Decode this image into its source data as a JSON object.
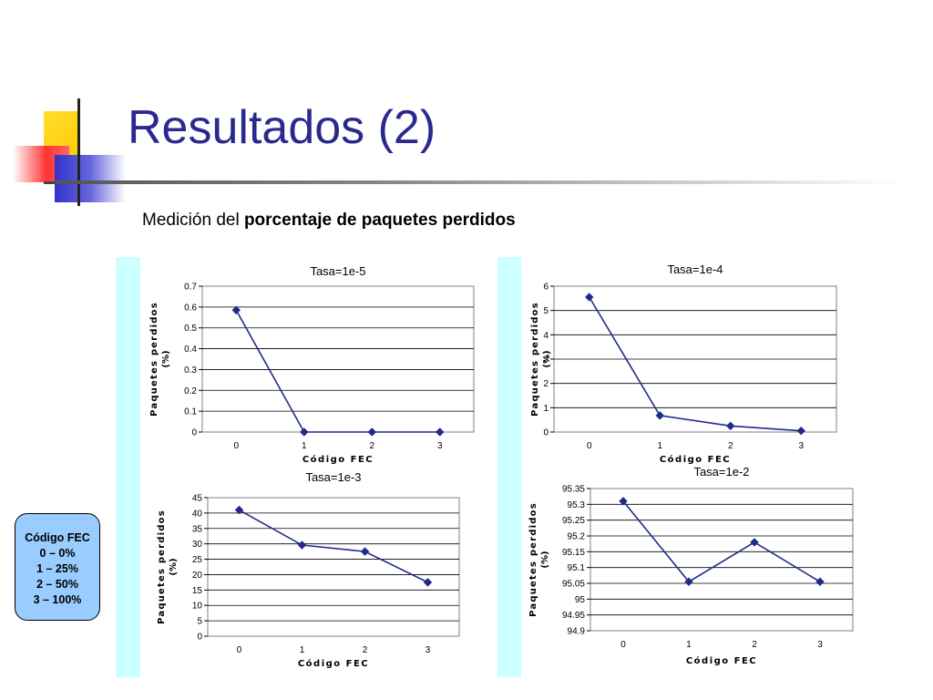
{
  "slide": {
    "title": "Resultados (2)",
    "subtitle_normal": "Medición del ",
    "subtitle_bold": "porcentaje de paquetes perdidos"
  },
  "legend_box": {
    "lines": [
      "Código FEC",
      "0 – 0%",
      "1 – 25%",
      "2 – 50%",
      "3 – 100%"
    ]
  },
  "colors": {
    "title": "#2a2a8e",
    "series": "#1f2a8a",
    "band": "#ccffff",
    "legend_bg": "#99ccff",
    "logo_yellow": "#ffcc00",
    "logo_red": "#ff3333",
    "logo_blue": "#3333cc"
  },
  "chart_data": [
    {
      "type": "line",
      "title": "Tasa=1e-5",
      "xlabel": "Código FEC",
      "ylabel": "Paquetes perdidos (%)",
      "categories": [
        "0",
        "1",
        "2",
        "3"
      ],
      "values": [
        0.585,
        0.0,
        0.0,
        0.0
      ],
      "ylim": [
        0,
        0.7
      ],
      "yticks": [
        "0",
        "0.1",
        "0.2",
        "0.3",
        "0.4",
        "0.5",
        "0.6",
        "0.7"
      ],
      "grid": true
    },
    {
      "type": "line",
      "title": "Tasa=1e-4",
      "xlabel": "Código FEC",
      "ylabel": "Paquetes perdidos (%)",
      "categories": [
        "0",
        "1",
        "2",
        "3"
      ],
      "values": [
        5.55,
        0.68,
        0.25,
        0.05
      ],
      "ylim": [
        0,
        6
      ],
      "yticks": [
        "0",
        "1",
        "2",
        "3",
        "4",
        "5",
        "6"
      ],
      "grid": true
    },
    {
      "type": "line",
      "title": "Tasa=1e-3",
      "xlabel": "Código FEC",
      "ylabel": "Paquetes perdidos (%)",
      "categories": [
        "0",
        "1",
        "2",
        "3"
      ],
      "values": [
        41.0,
        29.6,
        27.5,
        17.5
      ],
      "ylim": [
        0,
        45
      ],
      "yticks": [
        "0",
        "5",
        "10",
        "15",
        "20",
        "25",
        "30",
        "35",
        "40",
        "45"
      ],
      "grid": true
    },
    {
      "type": "line",
      "title": "Tasa=1e-2",
      "xlabel": "Código FEC",
      "ylabel": "Paquetes perdidos (%)",
      "categories": [
        "0",
        "1",
        "2",
        "3"
      ],
      "values": [
        95.31,
        95.055,
        95.18,
        95.055
      ],
      "ylim": [
        94.9,
        95.35
      ],
      "yticks": [
        "94.9",
        "94.95",
        "95",
        "95.05",
        "95.1",
        "95.15",
        "95.2",
        "95.25",
        "95.3",
        "95.35"
      ],
      "grid": true
    }
  ]
}
